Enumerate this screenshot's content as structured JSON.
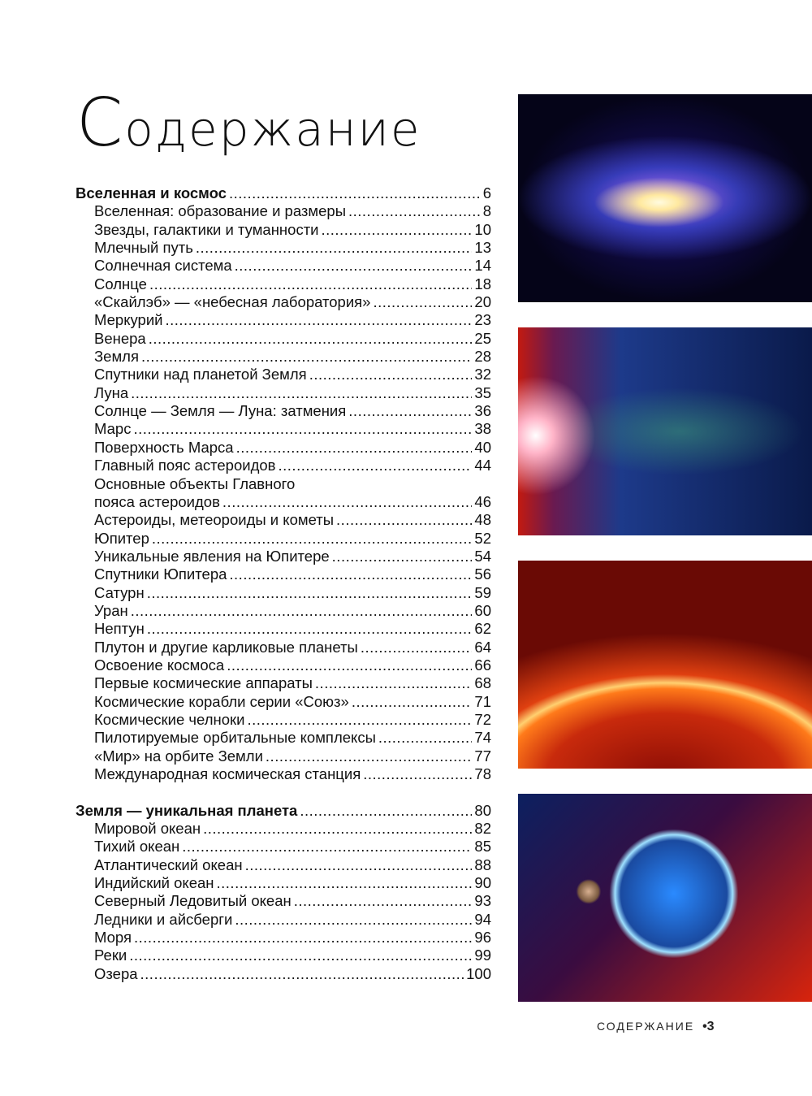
{
  "title": {
    "first": "С",
    "rest": "одержание"
  },
  "sections": [
    {
      "title": "Вселенная и космос",
      "page": "6",
      "items": [
        {
          "label": "Вселенная: образование и размеры",
          "page": "8"
        },
        {
          "label": "Звезды, галактики и туманности",
          "page": "10"
        },
        {
          "label": "Млечный путь",
          "page": "13"
        },
        {
          "label": "Солнечная система",
          "page": "14"
        },
        {
          "label": "Солнце",
          "page": "18"
        },
        {
          "label": "«Скайлэб» — «небесная лаборатория»",
          "page": "20"
        },
        {
          "label": "Меркурий",
          "page": "23"
        },
        {
          "label": "Венера",
          "page": "25"
        },
        {
          "label": "Земля",
          "page": "28"
        },
        {
          "label": "Спутники над планетой Земля",
          "page": "32"
        },
        {
          "label": "Луна",
          "page": "35"
        },
        {
          "label": "Солнце — Земля — Луна: затмения",
          "page": "36"
        },
        {
          "label": "Марс",
          "page": "38"
        },
        {
          "label": "Поверхность Марса",
          "page": "40"
        },
        {
          "label": "Главный пояс астероидов",
          "page": "44"
        },
        {
          "label_line1": "Основные объекты Главного",
          "label": "пояса астероидов",
          "page": "46"
        },
        {
          "label": "Астероиды, метеороиды и кометы",
          "page": "48"
        },
        {
          "label": "Юпитер",
          "page": "52"
        },
        {
          "label": "Уникальные явления на Юпитере",
          "page": "54"
        },
        {
          "label": "Спутники Юпитера",
          "page": "56"
        },
        {
          "label": "Сатурн",
          "page": "59"
        },
        {
          "label": "Уран",
          "page": "60"
        },
        {
          "label": "Нептун",
          "page": "62"
        },
        {
          "label": "Плутон и другие карликовые планеты",
          "page": "64"
        },
        {
          "label": "Освоение космоса",
          "page": "66"
        },
        {
          "label": "Первые космические аппараты",
          "page": "68"
        },
        {
          "label": "Космические корабли серии «Союз»",
          "page": "71"
        },
        {
          "label": "Космические челноки",
          "page": "72"
        },
        {
          "label": "Пилотируемые орбитальные комплексы",
          "page": "74"
        },
        {
          "label": "«Мир» на орбите Земли",
          "page": "77"
        },
        {
          "label": "Международная космическая станция",
          "page": "78"
        }
      ]
    },
    {
      "title": "Земля — уникальная планета",
      "page": "80",
      "items": [
        {
          "label": "Мировой океан",
          "page": "82"
        },
        {
          "label": "Тихий океан",
          "page": "85"
        },
        {
          "label": "Атлантический океан",
          "page": "88"
        },
        {
          "label": "Индийский океан",
          "page": "90"
        },
        {
          "label": "Северный Ледовитый океан",
          "page": "93"
        },
        {
          "label": "Ледники и айсберги",
          "page": "94"
        },
        {
          "label": "Моря",
          "page": "96"
        },
        {
          "label": "Реки",
          "page": "99"
        },
        {
          "label": "Озера",
          "page": "100"
        }
      ]
    }
  ],
  "images": [
    "galaxy",
    "solar-system",
    "sun-surface",
    "earth-and-moon"
  ],
  "footer": {
    "label": "СОДЕРЖАНИЕ",
    "bullet": "•",
    "page": "3"
  }
}
